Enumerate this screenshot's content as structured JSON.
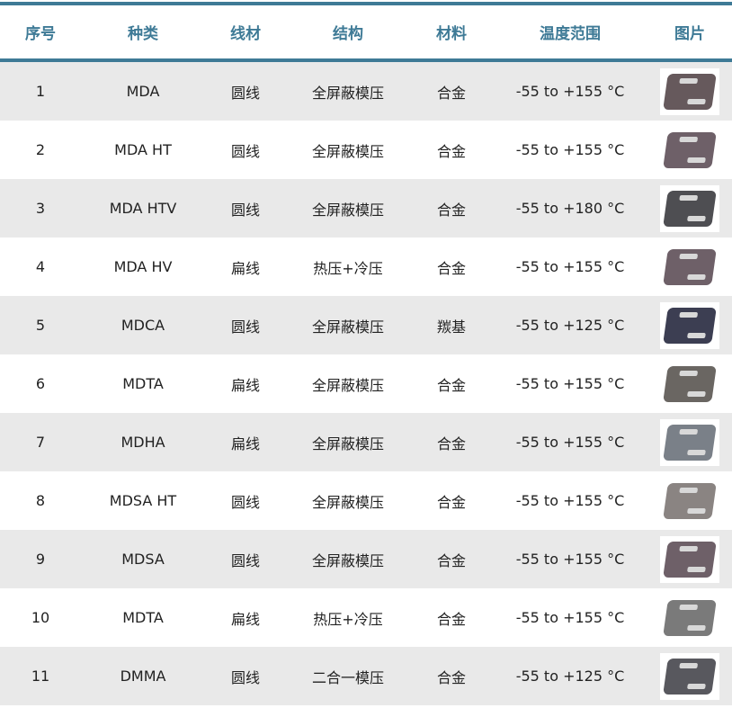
{
  "headers": [
    "序号",
    "种类",
    "线材",
    "结构",
    "材料",
    "温度范围",
    "图片"
  ],
  "rows": [
    {
      "no": "1",
      "type": "MDA",
      "wire": "圆线",
      "structure": "全屏蔽模压",
      "material": "合金",
      "temp": "-55 to +155 °C",
      "image": "inductor-image",
      "color": "#66595c"
    },
    {
      "no": "2",
      "type": "MDA HT",
      "wire": "圆线",
      "structure": "全屏蔽模压",
      "material": "合金",
      "temp": "-55 to +155 °C",
      "image": "inductor-image",
      "color": "#6e6068"
    },
    {
      "no": "3",
      "type": "MDA HTV",
      "wire": "圆线",
      "structure": "全屏蔽模压",
      "material": "合金",
      "temp": "-55 to +180 °C",
      "image": "inductor-image",
      "color": "#4e4e52"
    },
    {
      "no": "4",
      "type": "MDA HV",
      "wire": "扁线",
      "structure": "热压+冷压",
      "material": "合金",
      "temp": "-55 to +155 °C",
      "image": "inductor-image",
      "color": "#6e6068"
    },
    {
      "no": "5",
      "type": "MDCA",
      "wire": "圆线",
      "structure": "全屏蔽模压",
      "material": "羰基",
      "temp": "-55 to +125 °C",
      "image": "inductor-image",
      "color": "#3c3e52"
    },
    {
      "no": "6",
      "type": "MDTA",
      "wire": "扁线",
      "structure": "全屏蔽模压",
      "material": "合金",
      "temp": "-55 to +155 °C",
      "image": "inductor-image",
      "color": "#6a6662"
    },
    {
      "no": "7",
      "type": "MDHA",
      "wire": "扁线",
      "structure": "全屏蔽模压",
      "material": "合金",
      "temp": "-55 to +155 °C",
      "image": "inductor-image",
      "color": "#7a8088"
    },
    {
      "no": "8",
      "type": "MDSA HT",
      "wire": "圆线",
      "structure": "全屏蔽模压",
      "material": "合金",
      "temp": "-55 to +155 °C",
      "image": "inductor-image",
      "color": "#8a8482"
    },
    {
      "no": "9",
      "type": "MDSA",
      "wire": "圆线",
      "structure": "全屏蔽模压",
      "material": "合金",
      "temp": "-55 to +155 °C",
      "image": "inductor-image",
      "color": "#6e6068"
    },
    {
      "no": "10",
      "type": "MDTA",
      "wire": "扁线",
      "structure": "热压+冷压",
      "material": "合金",
      "temp": "-55 to +155 °C",
      "image": "inductor-image",
      "color": "#7a7a7a"
    },
    {
      "no": "11",
      "type": "DMMA",
      "wire": "圆线",
      "structure": "二合一模压",
      "material": "合金",
      "temp": "-55 to +125 °C",
      "image": "inductor-image",
      "color": "#58585e"
    }
  ],
  "colors": {
    "accent": "#3e7a96",
    "row_alt": "#e9e9e9"
  }
}
